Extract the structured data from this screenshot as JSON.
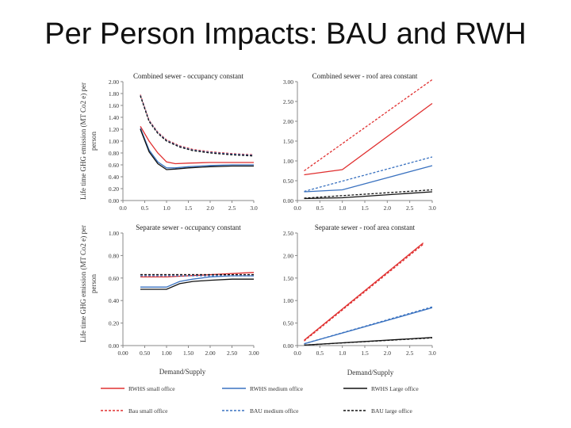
{
  "slide": {
    "title": "Per Person Impacts: BAU and RWH"
  },
  "figure": {
    "y_axis_label_line1": "Life time GHG emission (MT Co2 e) per",
    "y_axis_label_line2": "person",
    "x_axis_label": "Demand/Supply"
  },
  "legend": [
    {
      "label": "RWHS small office",
      "color": "#e03030",
      "dash": "solid"
    },
    {
      "label": "RWHS medium office",
      "color": "#3a72c0",
      "dash": "solid"
    },
    {
      "label": "RWHS Large office",
      "color": "#111111",
      "dash": "solid"
    },
    {
      "label": "Bau small office",
      "color": "#e03030",
      "dash": "dashed"
    },
    {
      "label": "BAU medium office",
      "color": "#3a72c0",
      "dash": "dashed"
    },
    {
      "label": "BAU large office",
      "color": "#111111",
      "dash": "dashed"
    }
  ],
  "chart_data": [
    {
      "type": "line",
      "title": "Combined sewer - occupancy constant",
      "xlim": [
        0,
        3
      ],
      "ylim": [
        0,
        2
      ],
      "x_ticks": [
        "0.0",
        "0.5",
        "1.0",
        "1.5",
        "2.0",
        "2.5",
        "3.0"
      ],
      "y_ticks": [
        "0.00",
        "0.20",
        "0.40",
        "0.60",
        "0.80",
        "1.00",
        "1.20",
        "1.40",
        "1.60",
        "1.80",
        "2.00"
      ],
      "series": [
        {
          "name": "RWHS small office",
          "color": "#e03030",
          "dash": "solid",
          "x": [
            0.4,
            0.6,
            0.8,
            1.0,
            1.2,
            1.5,
            2.0,
            2.5,
            3.0
          ],
          "y": [
            1.25,
            1.0,
            0.8,
            0.65,
            0.62,
            0.63,
            0.64,
            0.64,
            0.64
          ]
        },
        {
          "name": "RWHS medium office",
          "color": "#3a72c0",
          "dash": "solid",
          "x": [
            0.4,
            0.6,
            0.8,
            1.0,
            1.2,
            1.5,
            2.0,
            2.5,
            3.0
          ],
          "y": [
            1.22,
            0.85,
            0.65,
            0.55,
            0.55,
            0.57,
            0.59,
            0.6,
            0.6
          ]
        },
        {
          "name": "RWHS Large office",
          "color": "#111111",
          "dash": "solid",
          "x": [
            0.4,
            0.6,
            0.8,
            1.0,
            1.2,
            1.5,
            2.0,
            2.5,
            3.0
          ],
          "y": [
            1.2,
            0.82,
            0.62,
            0.52,
            0.53,
            0.55,
            0.57,
            0.58,
            0.58
          ]
        },
        {
          "name": "Bau small office",
          "color": "#e03030",
          "dash": "dashed",
          "x": [
            0.4,
            0.6,
            0.8,
            1.0,
            1.3,
            1.6,
            2.0,
            2.5,
            3.0
          ],
          "y": [
            1.78,
            1.35,
            1.15,
            1.02,
            0.92,
            0.86,
            0.82,
            0.79,
            0.77
          ]
        },
        {
          "name": "BAU medium office",
          "color": "#3a72c0",
          "dash": "dashed",
          "x": [
            0.4,
            0.6,
            0.8,
            1.0,
            1.3,
            1.6,
            2.0,
            2.5,
            3.0
          ],
          "y": [
            1.77,
            1.34,
            1.14,
            1.01,
            0.91,
            0.85,
            0.81,
            0.78,
            0.76
          ]
        },
        {
          "name": "BAU large office",
          "color": "#111111",
          "dash": "dashed",
          "x": [
            0.4,
            0.6,
            0.8,
            1.0,
            1.3,
            1.6,
            2.0,
            2.5,
            3.0
          ],
          "y": [
            1.76,
            1.33,
            1.13,
            1.0,
            0.9,
            0.84,
            0.8,
            0.77,
            0.75
          ]
        }
      ]
    },
    {
      "type": "line",
      "title": "Combined sewer - roof area constant",
      "xlim": [
        0,
        3
      ],
      "ylim": [
        0,
        3
      ],
      "x_ticks": [
        "0.0",
        "0.5",
        "1.0",
        "1.5",
        "2.0",
        "2.5",
        "3.0"
      ],
      "y_ticks": [
        "0.00",
        "0.50",
        "1.00",
        "1.50",
        "2.00",
        "2.50",
        "3.00"
      ],
      "series": [
        {
          "name": "RWHS small office",
          "color": "#e03030",
          "dash": "solid",
          "x": [
            0.15,
            1.0,
            3.0
          ],
          "y": [
            0.65,
            0.78,
            2.45
          ]
        },
        {
          "name": "RWHS medium office",
          "color": "#3a72c0",
          "dash": "solid",
          "x": [
            0.15,
            1.0,
            3.0
          ],
          "y": [
            0.22,
            0.27,
            0.88
          ]
        },
        {
          "name": "RWHS Large office",
          "color": "#111111",
          "dash": "solid",
          "x": [
            0.15,
            1.0,
            3.0
          ],
          "y": [
            0.05,
            0.07,
            0.22
          ]
        },
        {
          "name": "Bau small office",
          "color": "#e03030",
          "dash": "dashed",
          "x": [
            0.15,
            3.0
          ],
          "y": [
            0.75,
            3.05
          ]
        },
        {
          "name": "BAU medium office",
          "color": "#3a72c0",
          "dash": "dashed",
          "x": [
            0.15,
            3.0
          ],
          "y": [
            0.23,
            1.1
          ]
        },
        {
          "name": "BAU large office",
          "color": "#111111",
          "dash": "dashed",
          "x": [
            0.15,
            3.0
          ],
          "y": [
            0.06,
            0.27
          ]
        }
      ]
    },
    {
      "type": "line",
      "title": "Separate sewer - occupancy  constant",
      "xlim": [
        0,
        3
      ],
      "ylim": [
        0,
        1
      ],
      "x_ticks": [
        "0.00",
        "0.50",
        "1.00",
        "1.50",
        "2.00",
        "2.50",
        "3.00"
      ],
      "y_ticks": [
        "0.00",
        "0.20",
        "0.40",
        "0.60",
        "0.80",
        "1.00"
      ],
      "series": [
        {
          "name": "RWHS small office",
          "color": "#e03030",
          "dash": "solid",
          "x": [
            0.4,
            1.0,
            3.0
          ],
          "y": [
            0.61,
            0.61,
            0.65
          ]
        },
        {
          "name": "RWHS medium office",
          "color": "#3a72c0",
          "dash": "solid",
          "x": [
            0.4,
            1.0,
            1.3,
            1.6,
            2.0,
            2.5,
            3.0
          ],
          "y": [
            0.52,
            0.52,
            0.57,
            0.59,
            0.61,
            0.62,
            0.62
          ]
        },
        {
          "name": "RWHS Large office",
          "color": "#111111",
          "dash": "solid",
          "x": [
            0.4,
            1.0,
            1.3,
            1.6,
            2.0,
            2.5,
            3.0
          ],
          "y": [
            0.5,
            0.5,
            0.55,
            0.57,
            0.58,
            0.59,
            0.59
          ]
        },
        {
          "name": "Bau small office",
          "color": "#e03030",
          "dash": "dashed",
          "x": [
            0.4,
            3.0
          ],
          "y": [
            0.63,
            0.63
          ]
        },
        {
          "name": "BAU medium office",
          "color": "#3a72c0",
          "dash": "dashed",
          "x": [
            0.4,
            3.0
          ],
          "y": [
            0.62,
            0.62
          ]
        },
        {
          "name": "BAU large office",
          "color": "#111111",
          "dash": "dashed",
          "x": [
            0.4,
            3.0
          ],
          "y": [
            0.63,
            0.63
          ]
        }
      ]
    },
    {
      "type": "line",
      "title": "Separate sewer - roof area  constant",
      "xlim": [
        0,
        3
      ],
      "ylim": [
        0,
        2.5
      ],
      "x_ticks": [
        "0.0",
        "0.5",
        "1.0",
        "1.5",
        "2.0",
        "2.5",
        "3.0"
      ],
      "y_ticks": [
        "0.00",
        "0.50",
        "1.00",
        "1.50",
        "2.00",
        "2.50"
      ],
      "series": [
        {
          "name": "RWHS small office",
          "color": "#e03030",
          "dash": "solid",
          "x": [
            0.15,
            2.8
          ],
          "y": [
            0.12,
            2.28
          ]
        },
        {
          "name": "RWHS medium office",
          "color": "#3a72c0",
          "dash": "solid",
          "x": [
            0.15,
            3.0
          ],
          "y": [
            0.04,
            0.84
          ]
        },
        {
          "name": "RWHS Large office",
          "color": "#111111",
          "dash": "solid",
          "x": [
            0.15,
            3.0
          ],
          "y": [
            0.01,
            0.18
          ]
        },
        {
          "name": "Bau small office",
          "color": "#e03030",
          "dash": "dashed",
          "x": [
            0.15,
            2.8
          ],
          "y": [
            0.1,
            2.25
          ]
        },
        {
          "name": "BAU medium office",
          "color": "#3a72c0",
          "dash": "dashed",
          "x": [
            0.15,
            3.0
          ],
          "y": [
            0.04,
            0.86
          ]
        },
        {
          "name": "BAU large office",
          "color": "#111111",
          "dash": "dashed",
          "x": [
            0.15,
            3.0
          ],
          "y": [
            0.01,
            0.17
          ]
        }
      ]
    }
  ]
}
